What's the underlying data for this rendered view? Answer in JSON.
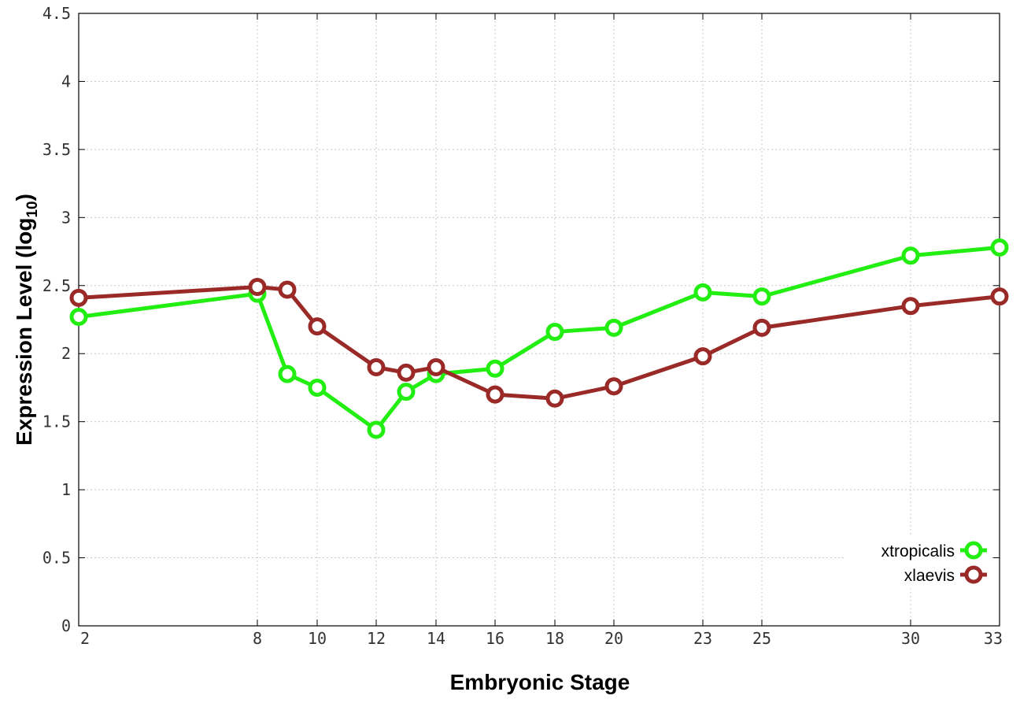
{
  "chart_data": {
    "type": "line",
    "xlabel": "Embryonic Stage",
    "ylabel_main": "Expression Level (log",
    "ylabel_sub": "10",
    "ylabel_close": ")",
    "x_categories": [
      2,
      8,
      9,
      10,
      12,
      13,
      14,
      16,
      18,
      20,
      23,
      25,
      30,
      33
    ],
    "x_ticks": [
      "2",
      "8",
      "10",
      "12",
      "14",
      "16",
      "18",
      "20",
      "23",
      "25",
      "30",
      "33"
    ],
    "y_ticks": [
      "0",
      "0.5",
      "1",
      "1.5",
      "2",
      "2.5",
      "3",
      "3.5",
      "4",
      "4.5"
    ],
    "ylim": [
      0,
      4.5
    ],
    "grid": true,
    "legend_position": "bottom-right",
    "series": [
      {
        "name": "xtropicalis",
        "color": "#22ee11",
        "x": [
          2,
          8,
          9,
          10,
          12,
          13,
          14,
          16,
          18,
          20,
          23,
          25,
          30,
          33
        ],
        "y": [
          2.27,
          2.44,
          1.85,
          1.75,
          1.44,
          1.72,
          1.85,
          1.89,
          2.16,
          2.19,
          2.45,
          2.42,
          2.72,
          2.78
        ]
      },
      {
        "name": "xlaevis",
        "color": "#992a27",
        "x": [
          2,
          8,
          9,
          10,
          12,
          13,
          14,
          16,
          18,
          20,
          23,
          25,
          30,
          33
        ],
        "y": [
          2.41,
          2.49,
          2.47,
          2.2,
          1.9,
          1.86,
          1.9,
          1.7,
          1.67,
          1.76,
          1.98,
          2.19,
          2.35,
          2.42
        ]
      }
    ]
  }
}
